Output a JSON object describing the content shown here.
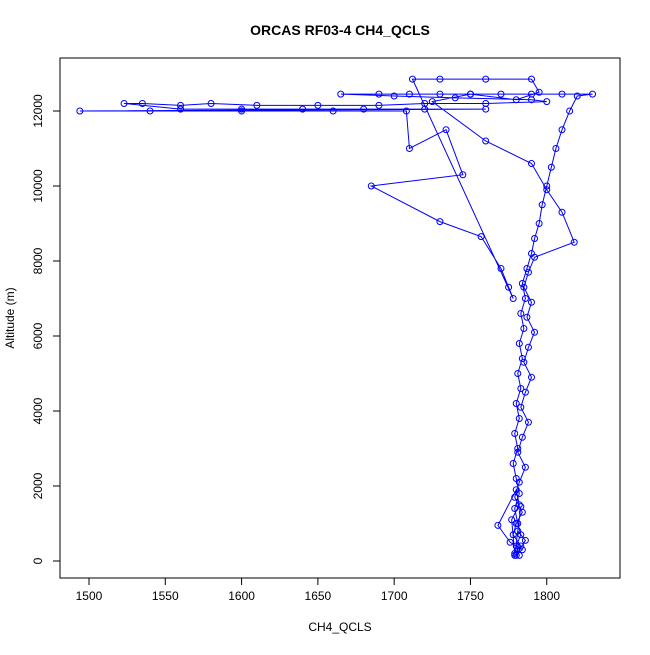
{
  "chart_data": {
    "type": "line",
    "title": "ORCAS RF03-4 CH4_QCLS",
    "x_label": "CH4_QCLS",
    "y_label": "Altitude (m)",
    "color": "#0000ff",
    "x": [
      1782,
      1780,
      1783,
      1781,
      1779,
      1782,
      1780,
      1778,
      1781,
      1779,
      1782,
      1780,
      1783,
      1781,
      1784,
      1782,
      1785,
      1783,
      1786,
      1784,
      1787,
      1790,
      1792,
      1795,
      1797,
      1800,
      1803,
      1806,
      1810,
      1815,
      1820,
      1830,
      1810,
      1790,
      1770,
      1750,
      1730,
      1710,
      1690,
      1665,
      1700,
      1740,
      1790,
      1800,
      1760,
      1720,
      1690,
      1650,
      1610,
      1580,
      1560,
      1535,
      1523,
      1560,
      1600,
      1640,
      1680,
      1720,
      1760,
      1494,
      1540,
      1600,
      1660,
      1708,
      1710,
      1734,
      1745,
      1685,
      1730,
      1757,
      1770,
      1775,
      1778,
      1712,
      1730,
      1760,
      1790,
      1795,
      1780,
      1750,
      1725,
      1760,
      1790,
      1800,
      1810,
      1818,
      1792,
      1788,
      1785,
      1790,
      1787,
      1792,
      1788,
      1785,
      1790,
      1786,
      1783,
      1788,
      1784,
      1781,
      1786,
      1782,
      1779,
      1784,
      1780,
      1778,
      1783,
      1779,
      1777,
      1782,
      1780,
      1768,
      1776,
      1784,
      1779,
      1783,
      1781,
      1786,
      1780
    ],
    "values": [
      150,
      400,
      700,
      1000,
      1400,
      1800,
      2200,
      2600,
      3000,
      3400,
      3800,
      4200,
      4600,
      5000,
      5400,
      5800,
      6200,
      6600,
      7000,
      7400,
      7800,
      8200,
      8600,
      9000,
      9500,
      10000,
      10500,
      11000,
      11500,
      12000,
      12400,
      12450,
      12450,
      12450,
      12450,
      12450,
      12450,
      12450,
      12450,
      12450,
      12400,
      12350,
      12300,
      12250,
      12200,
      12200,
      12150,
      12150,
      12150,
      12200,
      12150,
      12200,
      12200,
      12050,
      12050,
      12050,
      12050,
      12050,
      12050,
      12000,
      12000,
      12000,
      12000,
      12000,
      11000,
      11500,
      10300,
      10000,
      9050,
      8650,
      7800,
      7300,
      7000,
      12850,
      12850,
      12850,
      12850,
      12500,
      12300,
      12450,
      12250,
      11200,
      10600,
      9900,
      9300,
      8500,
      8100,
      7700,
      7300,
      6900,
      6500,
      6100,
      5700,
      5300,
      4900,
      4500,
      4100,
      3700,
      3300,
      2900,
      2500,
      2100,
      1700,
      1300,
      1000,
      700,
      400,
      200,
      1100,
      1500,
      1900,
      950,
      500,
      300,
      150,
      1450,
      800,
      550,
      150
    ],
    "xlim": [
      1481,
      1848
    ],
    "ylim": [
      -453,
      13413
    ],
    "xticks": [
      1500,
      1550,
      1600,
      1650,
      1700,
      1750,
      1800
    ],
    "yticks": [
      0,
      2000,
      4000,
      6000,
      8000,
      10000,
      12000
    ]
  }
}
